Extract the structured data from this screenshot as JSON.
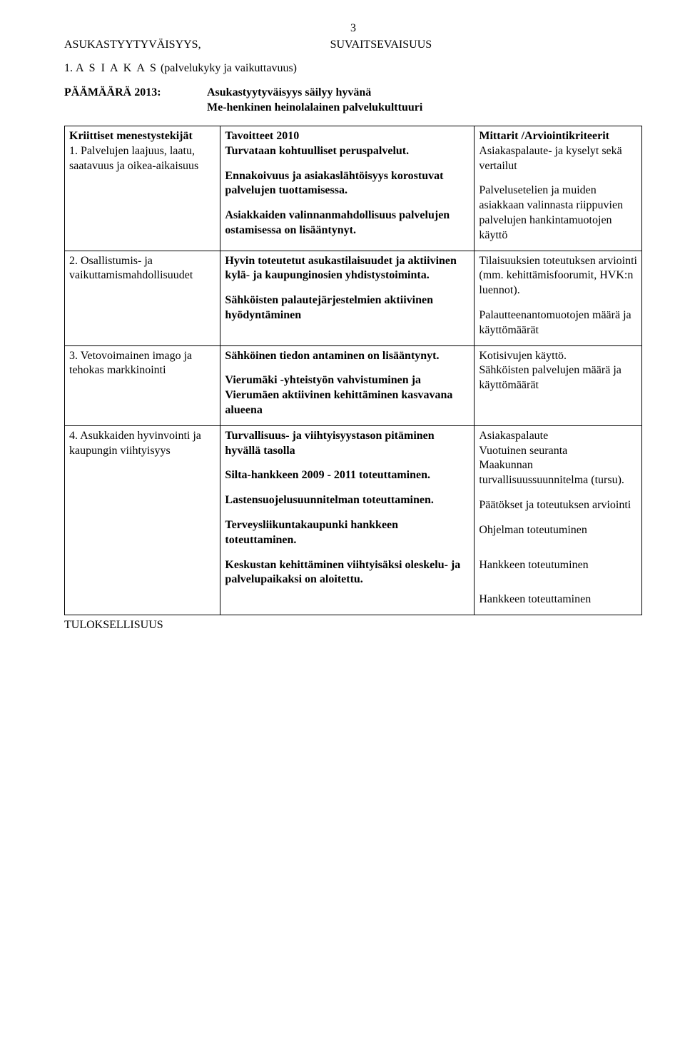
{
  "page_number": "3",
  "header_left": "ASUKASTYYTYVÄISYYS,",
  "header_right": "SUVAITSEVAISUUS",
  "section_title_prefix": "1.  ",
  "section_title_spaced": "A S I A K A S",
  "section_title_rest": " (palvelukyky ja vaikuttavuus)",
  "paamaara_label": "PÄÄMÄÄRÄ 2013:",
  "paamaara_line1": "Asukastyytyväisyys säilyy hyvänä",
  "paamaara_line2": "Me-henkinen heinolalainen palvelukulttuuri",
  "table": {
    "rows": [
      {
        "c1_head": "Kriittiset menestystekijät",
        "c1_body": [
          "1. Palvelujen laajuus, laatu, saatavuus ja oikea-aikaisuus"
        ],
        "c2_head": "Tavoitteet 2010",
        "c2_body": [
          "Turvataan kohtuulliset peruspalvelut.",
          "Ennakoivuus ja asiakaslähtöisyys korostuvat palvelujen tuottamisessa.",
          "Asiakkaiden valinnanmahdollisuus palvelujen ostamisessa on lisääntynyt."
        ],
        "c3_head": "Mittarit /Arviointikriteerit",
        "c3_body": [
          "Asiakaspalaute- ja kyselyt sekä vertailut",
          "Palvelusetelien ja muiden asiakkaan valinnasta riippuvien palvelujen hankintamuotojen käyttö"
        ]
      },
      {
        "c1_body": [
          "2. Osallistumis- ja vaikuttamismahdollisuudet"
        ],
        "c2_body": [
          "Hyvin toteutetut asukastilaisuudet ja aktiivinen kylä- ja kaupunginosien yhdistystoiminta.",
          "Sähköisten palautejärjestelmien aktiivinen hyödyntäminen"
        ],
        "c3_body": [
          "Tilaisuuksien toteutuksen arviointi (mm. kehittämisfoorumit, HVK:n luennot).",
          "Palautteenantomuotojen määrä ja käyttömäärät"
        ]
      },
      {
        "c1_body": [
          "3. Vetovoimainen imago ja tehokas markkinointi"
        ],
        "c2_body": [
          "Sähköinen tiedon antaminen on lisääntynyt.",
          "Vierumäki -yhteistyön vahvistuminen ja Vierumäen aktiivinen kehittäminen kasvavana alueena"
        ],
        "c3_body": [
          "Kotisivujen käyttö.",
          "Sähköisten palvelujen määrä ja käyttömäärät"
        ]
      },
      {
        "c1_body": [
          "4. Asukkaiden hyvinvointi ja kaupungin viihtyisyys"
        ],
        "c2_body": [
          "Turvallisuus- ja viihtyisyystason pitäminen hyvällä tasolla",
          "Silta-hankkeen 2009 - 2011 toteuttaminen.",
          "Lastensuojelusuunnitelman toteuttaminen.",
          "Terveysliikuntakaupunki hankkeen toteuttaminen.",
          "Keskustan kehittäminen viihtyisäksi oleskelu- ja palvelupaikaksi on aloitettu."
        ],
        "c3_body": [
          "Asiakaspalaute",
          "Vuotuinen seuranta",
          "Maakunnan turvallisuussuunnitelma (tursu).",
          "Päätökset ja toteutuksen arviointi",
          "Ohjelman toteutuminen",
          "Hankkeen toteutuminen",
          "Hankkeen toteuttaminen"
        ],
        "c3_big_gaps": true
      }
    ]
  },
  "footer_label": "TULOKSELLISUUS"
}
